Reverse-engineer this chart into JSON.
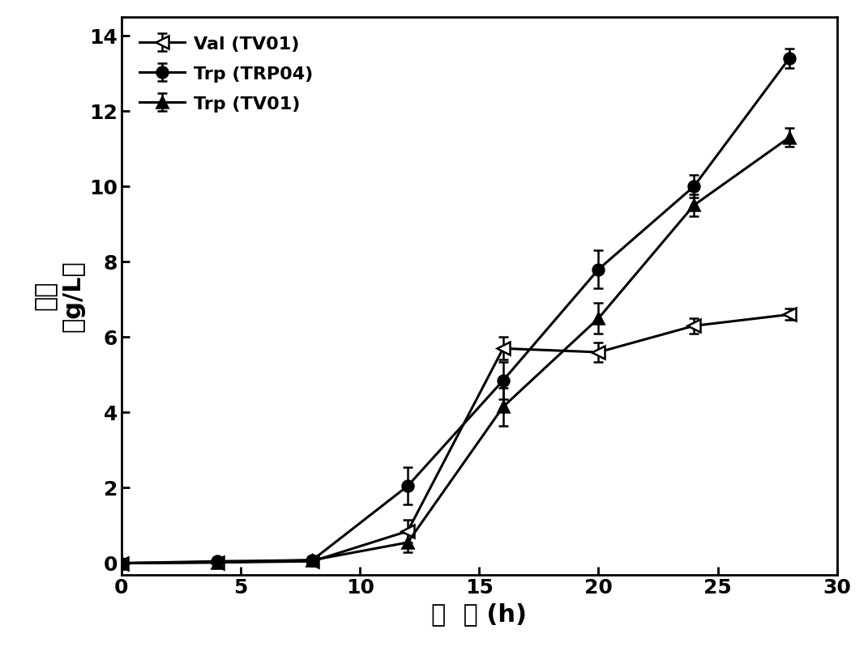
{
  "series": [
    {
      "label": "Val (TV01)",
      "x": [
        0,
        4,
        8,
        12,
        16,
        20,
        24,
        28
      ],
      "y": [
        0.0,
        0.02,
        0.05,
        0.85,
        5.7,
        5.6,
        6.3,
        6.6
      ],
      "yerr": [
        0.05,
        0.05,
        0.05,
        0.3,
        0.3,
        0.25,
        0.2,
        0.15
      ],
      "marker": "<",
      "color": "#000000",
      "fillstyle": "none",
      "linewidth": 2.2,
      "markersize": 12
    },
    {
      "label": "Trp (TRP04)",
      "x": [
        0,
        4,
        8,
        12,
        16,
        20,
        24,
        28
      ],
      "y": [
        0.0,
        0.05,
        0.08,
        2.05,
        4.85,
        7.8,
        10.0,
        13.4
      ],
      "yerr": [
        0.05,
        0.05,
        0.05,
        0.5,
        0.5,
        0.5,
        0.3,
        0.25
      ],
      "marker": "o",
      "color": "#000000",
      "fillstyle": "full",
      "linewidth": 2.2,
      "markersize": 10
    },
    {
      "label": "Trp (TV01)",
      "x": [
        0,
        4,
        8,
        12,
        16,
        20,
        24,
        28
      ],
      "y": [
        0.0,
        0.02,
        0.08,
        0.55,
        4.15,
        6.5,
        9.5,
        11.3
      ],
      "yerr": [
        0.05,
        0.05,
        0.05,
        0.25,
        0.5,
        0.4,
        0.3,
        0.25
      ],
      "marker": "^",
      "color": "#000000",
      "fillstyle": "full",
      "linewidth": 2.2,
      "markersize": 10
    }
  ],
  "xlabel_chinese": "时  间",
  "xlabel_unit": " (h)",
  "ylabel_chinese": "产量",
  "ylabel_unit": "（g/L）",
  "xlim": [
    0,
    30
  ],
  "ylim": [
    -0.3,
    14.5
  ],
  "xticks": [
    0,
    5,
    10,
    15,
    20,
    25,
    30
  ],
  "yticks": [
    0,
    2,
    4,
    6,
    8,
    10,
    12,
    14
  ],
  "background_color": "#ffffff",
  "legend_fontsize": 16,
  "axis_fontsize": 22,
  "tick_fontsize": 18
}
